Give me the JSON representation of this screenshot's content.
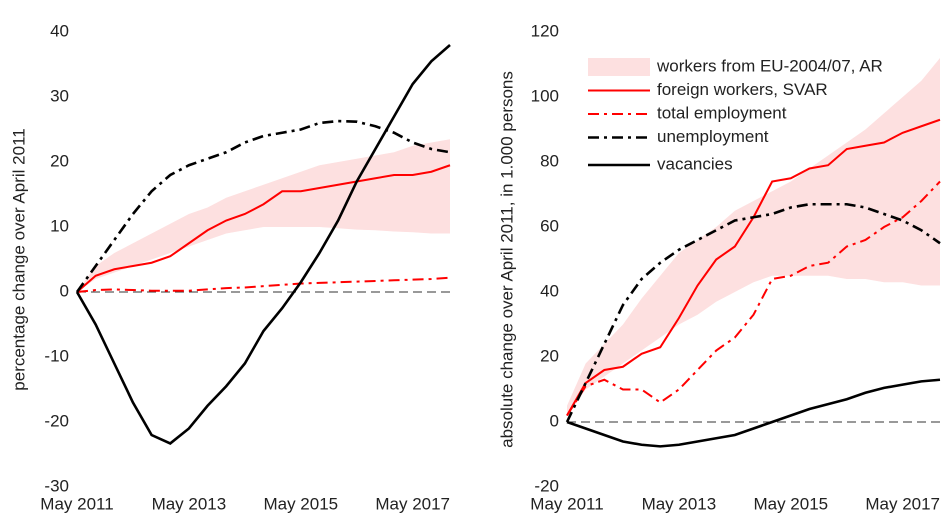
{
  "chart_data": [
    {
      "type": "line",
      "y_label": "percentage change over April 2011",
      "x": [
        "2011-05",
        "2011-09",
        "2012-01",
        "2012-05",
        "2012-09",
        "2013-01",
        "2013-05",
        "2013-09",
        "2014-01",
        "2014-05",
        "2014-09",
        "2015-01",
        "2015-05",
        "2015-09",
        "2016-01",
        "2016-05",
        "2016-09",
        "2017-01",
        "2017-05",
        "2017-09",
        "2018-01"
      ],
      "xlim": [
        "2011-05",
        "2018-01"
      ],
      "xticks": [
        {
          "value": "2011-05",
          "label": "May 2011"
        },
        {
          "value": "2013-05",
          "label": "May 2013"
        },
        {
          "value": "2015-05",
          "label": "May 2015"
        },
        {
          "value": "2017-05",
          "label": "May 2017"
        }
      ],
      "ylim": [
        -30,
        40
      ],
      "yticks": [
        -30,
        -20,
        -10,
        0,
        10,
        20,
        30,
        40
      ],
      "series": [
        {
          "kind": "band",
          "color": "#fde0e0",
          "upper": [
            0,
            4,
            6,
            7.5,
            9,
            10.5,
            12,
            13,
            14.5,
            15.5,
            16.5,
            17.5,
            18.5,
            19.5,
            20,
            20.5,
            21,
            21.5,
            22.5,
            23,
            23.5
          ],
          "lower": [
            0,
            2,
            3,
            4,
            5,
            6,
            7,
            8,
            9,
            9.5,
            10,
            10,
            10,
            10,
            9.8,
            9.6,
            9.5,
            9.3,
            9.2,
            9,
            9
          ]
        },
        {
          "color": "#ff0000",
          "style": "solid",
          "values": [
            0,
            2.5,
            3.5,
            4,
            4.5,
            5.5,
            7.5,
            9.5,
            11,
            12,
            13.5,
            15.5,
            15.5,
            16,
            16.5,
            17,
            17.5,
            18,
            18,
            18.5,
            19.5
          ]
        },
        {
          "color": "#ff0000",
          "style": "dashdot",
          "values": [
            0,
            0.3,
            0.4,
            0.3,
            0.2,
            0.2,
            0.2,
            0.4,
            0.6,
            0.7,
            0.9,
            1.1,
            1.3,
            1.4,
            1.5,
            1.6,
            1.7,
            1.8,
            1.9,
            2,
            2.2
          ]
        },
        {
          "color": "#000000",
          "style": "dashdot",
          "values": [
            0,
            4,
            8,
            12,
            15.5,
            18,
            19.5,
            20.5,
            21.5,
            23,
            24,
            24.5,
            25,
            26,
            26.3,
            26.2,
            25.5,
            24.5,
            23,
            22,
            21.5
          ]
        },
        {
          "color": "#000000",
          "style": "solid",
          "values": [
            0,
            -5,
            -11,
            -17,
            -22,
            -23.3,
            -21,
            -17.5,
            -14.5,
            -11,
            -6,
            -2.5,
            1.5,
            6,
            11,
            17,
            22,
            27,
            32,
            35.5,
            38
          ]
        }
      ]
    },
    {
      "type": "line",
      "y_label": "absolute change over April 2011, in 1.000 persons",
      "x": [
        "2011-05",
        "2011-09",
        "2012-01",
        "2012-05",
        "2012-09",
        "2013-01",
        "2013-05",
        "2013-09",
        "2014-01",
        "2014-05",
        "2014-09",
        "2015-01",
        "2015-05",
        "2015-09",
        "2016-01",
        "2016-05",
        "2016-09",
        "2017-01",
        "2017-05",
        "2017-09",
        "2018-01"
      ],
      "xlim": [
        "2011-05",
        "2018-01"
      ],
      "xticks": [
        {
          "value": "2011-05",
          "label": "May 2011"
        },
        {
          "value": "2013-05",
          "label": "May 2013"
        },
        {
          "value": "2015-05",
          "label": "May 2015"
        },
        {
          "value": "2017-05",
          "label": "May 2017"
        }
      ],
      "ylim": [
        -20,
        120
      ],
      "yticks": [
        -20,
        0,
        20,
        40,
        60,
        80,
        100,
        120
      ],
      "legend": "upper left",
      "series": [
        {
          "kind": "band",
          "name": "workers from EU-2004/07, AR",
          "color": "#fde0e0",
          "upper": [
            5,
            18,
            24,
            30,
            38,
            45,
            52,
            56,
            60,
            65,
            68,
            71,
            74,
            78,
            82,
            86,
            90,
            95,
            100,
            105,
            112
          ],
          "lower": [
            2,
            10,
            14,
            18,
            22,
            26,
            30,
            33,
            37,
            40,
            43,
            45,
            45,
            45,
            45,
            44,
            44,
            43,
            43,
            42,
            42
          ]
        },
        {
          "name": "foreign workers, SVAR",
          "color": "#ff0000",
          "style": "solid",
          "values": [
            2,
            12,
            16,
            17,
            21,
            23,
            32,
            42,
            50,
            54,
            63,
            74,
            75,
            78,
            79,
            84,
            85,
            86,
            89,
            91,
            93
          ]
        },
        {
          "name": "total employment",
          "color": "#ff0000",
          "style": "dashdot",
          "values": [
            2,
            11,
            13,
            10,
            10,
            6,
            10,
            16,
            22,
            26,
            33,
            44,
            45,
            48,
            49,
            54,
            56,
            60,
            63,
            68,
            74
          ]
        },
        {
          "name": "unemployment",
          "color": "#000000",
          "style": "dashdot",
          "values": [
            0,
            12,
            24,
            36,
            44,
            49,
            53,
            56,
            59,
            62,
            63,
            64,
            66,
            67,
            67,
            67,
            66,
            64,
            62,
            59,
            55
          ]
        },
        {
          "name": "vacancies",
          "color": "#000000",
          "style": "solid",
          "values": [
            0,
            -2,
            -4,
            -6,
            -7,
            -7.5,
            -7,
            -6,
            -5,
            -4,
            -2,
            0,
            2,
            4,
            5.5,
            7,
            9,
            10.5,
            11.5,
            12.5,
            13
          ]
        }
      ]
    }
  ]
}
